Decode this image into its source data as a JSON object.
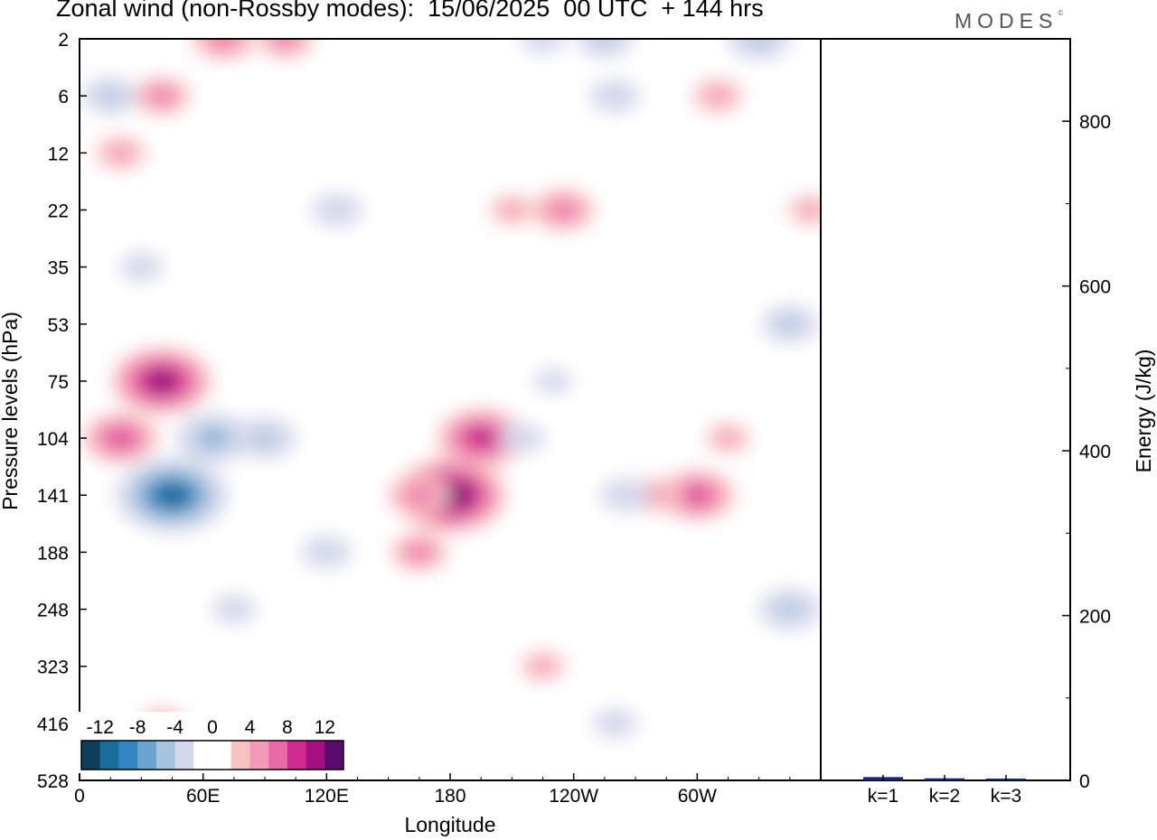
{
  "title": "Zonal wind (non-Rossby modes):  15/06/2025  00 UTC  + 144 hrs",
  "logo": "MODES",
  "logo_mark": "©",
  "colors": {
    "negative": [
      "#0d3f5c",
      "#1a6e9e",
      "#2f86c0",
      "#6aa5cf",
      "#a6c3df",
      "#d4d8ea"
    ],
    "positive": [
      "#f7c3c1",
      "#f59ab8",
      "#ea6aa8",
      "#d02a8f",
      "#a3107f",
      "#5b0a6e"
    ],
    "bar": "#1a237e"
  },
  "chart_data": [
    {
      "type": "heatmap",
      "title": "Zonal wind (non-Rossby modes):  15/06/2025  00 UTC  + 144 hrs",
      "xlabel": "Longitude",
      "ylabel": "Pressure levels (hPa)",
      "x_ticks": [
        "0",
        "60E",
        "120E",
        "180",
        "120W",
        "60W"
      ],
      "y_ticks": [
        "2",
        "6",
        "12",
        "22",
        "35",
        "53",
        "75",
        "104",
        "141",
        "188",
        "248",
        "323",
        "416",
        "528"
      ],
      "colorbar": {
        "labels": [
          "-12",
          "-8",
          "-4",
          "0",
          "4",
          "8",
          "12"
        ],
        "levels": [
          -14,
          -12,
          -10,
          -8,
          -6,
          -4,
          -2,
          0,
          2,
          4,
          6,
          8,
          10,
          12
        ]
      },
      "features": [
        {
          "lon": 45,
          "level": 141,
          "value": -14
        },
        {
          "lon": 65,
          "level": 104,
          "value": -8
        },
        {
          "lon": 90,
          "level": 104,
          "value": -6
        },
        {
          "lon": 20,
          "level": 104,
          "value": 8
        },
        {
          "lon": 40,
          "level": 75,
          "value": 12
        },
        {
          "lon": 180,
          "level": 141,
          "value": 14
        },
        {
          "lon": 195,
          "level": 104,
          "value": 10
        },
        {
          "lon": 165,
          "level": 141,
          "value": 6
        },
        {
          "lon": 165,
          "level": 188,
          "value": 5
        },
        {
          "lon": 300,
          "level": 141,
          "value": 8
        },
        {
          "lon": 280,
          "level": 141,
          "value": 4
        },
        {
          "lon": 315,
          "level": 104,
          "value": 3
        },
        {
          "lon": 345,
          "level": 248,
          "value": -6
        },
        {
          "lon": 345,
          "level": 53,
          "value": -5
        },
        {
          "lon": 265,
          "level": 141,
          "value": -4
        },
        {
          "lon": 120,
          "level": 188,
          "value": -4
        },
        {
          "lon": 125,
          "level": 22,
          "value": -4
        },
        {
          "lon": 235,
          "level": 22,
          "value": 6
        },
        {
          "lon": 210,
          "level": 22,
          "value": 3
        },
        {
          "lon": 70,
          "level": 2,
          "value": 6
        },
        {
          "lon": 100,
          "level": 2,
          "value": 5
        },
        {
          "lon": 40,
          "level": 6,
          "value": 5
        },
        {
          "lon": 20,
          "level": 12,
          "value": 4
        },
        {
          "lon": 310,
          "level": 6,
          "value": 4
        },
        {
          "lon": 15,
          "level": 6,
          "value": -5
        },
        {
          "lon": 330,
          "level": 2,
          "value": -6
        },
        {
          "lon": 255,
          "level": 2,
          "value": -5
        },
        {
          "lon": 260,
          "level": 6,
          "value": -4
        },
        {
          "lon": 225,
          "level": 2,
          "value": -3
        },
        {
          "lon": 215,
          "level": 104,
          "value": -3
        },
        {
          "lon": 230,
          "level": 75,
          "value": -2
        },
        {
          "lon": 260,
          "level": 416,
          "value": -3
        },
        {
          "lon": 225,
          "level": 323,
          "value": 3
        },
        {
          "lon": 40,
          "level": 416,
          "value": 3
        },
        {
          "lon": 75,
          "level": 248,
          "value": -3
        },
        {
          "lon": 30,
          "level": 35,
          "value": -3
        },
        {
          "lon": 355,
          "level": 22,
          "value": 3
        }
      ]
    },
    {
      "type": "bar",
      "ylabel": "Energy (J/kg)",
      "categories": [
        "k=1",
        "k=2",
        "k=3"
      ],
      "values": [
        4,
        2.5,
        1
      ],
      "ylim": [
        0,
        900
      ],
      "y_ticks": [
        "0",
        "200",
        "400",
        "600",
        "800"
      ]
    }
  ]
}
